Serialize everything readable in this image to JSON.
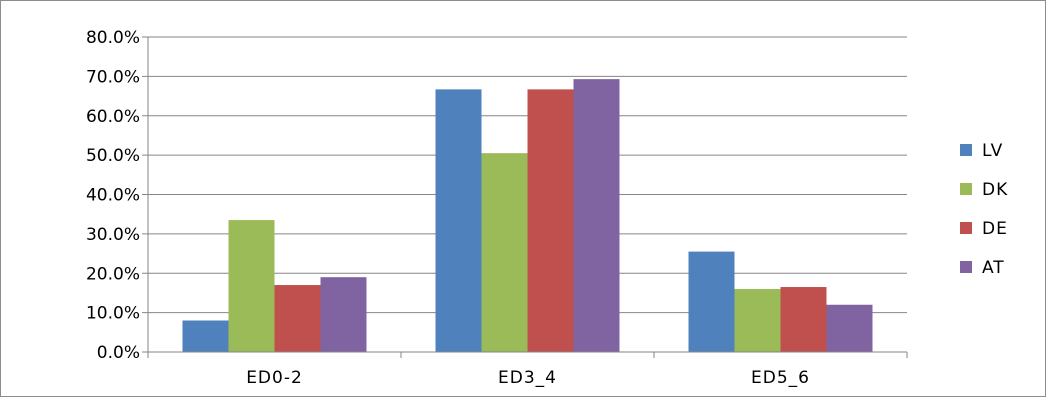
{
  "chart_data": {
    "type": "bar",
    "title": "",
    "xlabel": "",
    "ylabel": "",
    "categories": [
      "ED0-2",
      "ED3_4",
      "ED5_6"
    ],
    "series": [
      {
        "name": "LV",
        "color": "#4f81bd",
        "values": [
          8.0,
          66.7,
          25.5
        ]
      },
      {
        "name": "DK",
        "color": "#9bbb59",
        "values": [
          33.5,
          50.5,
          16.0
        ]
      },
      {
        "name": "DE",
        "color": "#c0504d",
        "values": [
          17.0,
          66.7,
          16.5
        ]
      },
      {
        "name": "AT",
        "color": "#8064a2",
        "values": [
          19.0,
          69.3,
          12.0
        ]
      }
    ],
    "ylim": [
      0,
      80
    ],
    "ytick_values": [
      0,
      10,
      20,
      30,
      40,
      50,
      60,
      70,
      80
    ],
    "ytick_labels": [
      "0.0%",
      "10.0%",
      "20.0%",
      "30.0%",
      "40.0%",
      "50.0%",
      "60.0%",
      "70.0%",
      "80.0%"
    ],
    "grid": true,
    "legend_position": "right"
  }
}
